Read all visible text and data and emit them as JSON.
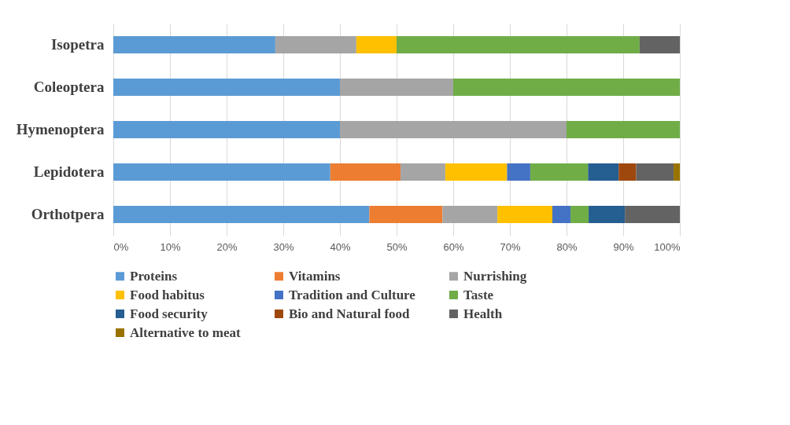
{
  "chart_data": {
    "type": "bar",
    "orientation": "horizontal",
    "stacked": true,
    "categories": [
      "Isopetra",
      "Coleoptera",
      "Hymenoptera",
      "Lepidotera",
      "Orthotpera"
    ],
    "series": [
      {
        "name": "Proteins",
        "color": "#5b9bd5",
        "values": [
          28.6,
          40,
          40,
          38.3,
          45.2
        ]
      },
      {
        "name": "Vitamins",
        "color": "#ed7d31",
        "values": [
          null,
          null,
          null,
          12.4,
          12.9
        ]
      },
      {
        "name": "Nurrishing",
        "color": "#a5a5a5",
        "values": [
          14.3,
          20,
          40,
          7.9,
          9.7
        ]
      },
      {
        "name": "Food habitus",
        "color": "#ffc000",
        "values": [
          7.1,
          null,
          null,
          10.9,
          9.7
        ]
      },
      {
        "name": "Tradition and Culture",
        "color": "#4472c4",
        "values": [
          null,
          null,
          null,
          4.1,
          3.2
        ]
      },
      {
        "name": "Taste",
        "color": "#70ad47",
        "values": [
          42.9,
          40,
          20,
          10.2,
          3.2
        ]
      },
      {
        "name": "Food security",
        "color": "#255e91",
        "values": [
          null,
          null,
          null,
          5.4,
          6.4
        ]
      },
      {
        "name": "Bio and Natural food",
        "color": "#9e480e",
        "values": [
          null,
          null,
          null,
          3.1,
          null
        ]
      },
      {
        "name": "Health",
        "color": "#636363",
        "values": [
          7.1,
          null,
          null,
          6.6,
          9.7
        ]
      },
      {
        "name": "Alternative to meat",
        "color": "#997300",
        "values": [
          null,
          null,
          null,
          1.1,
          null
        ]
      }
    ],
    "xlim": [
      0,
      100
    ],
    "xticks": [
      {
        "value": 0,
        "label": "0%"
      },
      {
        "value": 10,
        "label": "10%"
      },
      {
        "value": 20,
        "label": "20%"
      },
      {
        "value": 30,
        "label": "30%"
      },
      {
        "value": 40,
        "label": "40%"
      },
      {
        "value": 50,
        "label": "50%"
      },
      {
        "value": 60,
        "label": "60%"
      },
      {
        "value": 70,
        "label": "70%"
      },
      {
        "value": 80,
        "label": "80%"
      },
      {
        "value": 90,
        "label": "90%"
      },
      {
        "value": 100,
        "label": "100%"
      }
    ],
    "grid": "x",
    "legend": "bottom"
  }
}
